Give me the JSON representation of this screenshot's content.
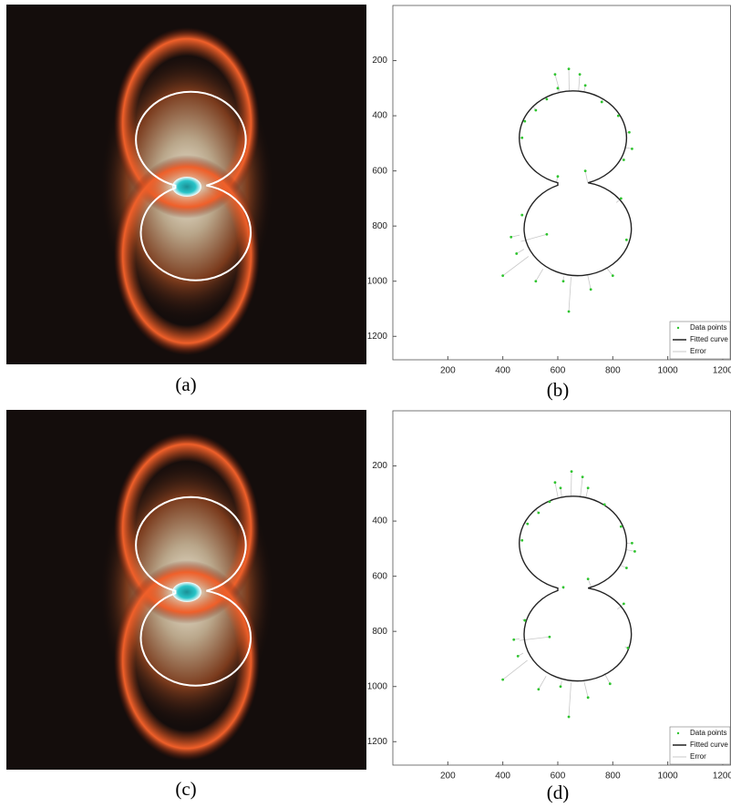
{
  "panels": [
    {
      "caption": "(a)"
    },
    {
      "caption": "(b)",
      "plot": {
        "xlim": [
          0,
          1230
        ],
        "ylim": [
          0,
          1285
        ],
        "xticks": [
          200,
          400,
          600,
          800,
          1000,
          1200
        ],
        "yticks": [
          200,
          400,
          600,
          800,
          1000,
          1200
        ],
        "points": [
          [
            470,
            480
          ],
          [
            480,
            420
          ],
          [
            520,
            380
          ],
          [
            560,
            340
          ],
          [
            600,
            300
          ],
          [
            640,
            230
          ],
          [
            700,
            290
          ],
          [
            760,
            350
          ],
          [
            820,
            400
          ],
          [
            860,
            460
          ],
          [
            840,
            560
          ],
          [
            700,
            600
          ],
          [
            560,
            830
          ],
          [
            470,
            760
          ],
          [
            450,
            900
          ],
          [
            400,
            980
          ],
          [
            520,
            1000
          ],
          [
            620,
            1000
          ],
          [
            640,
            1110
          ],
          [
            720,
            1030
          ],
          [
            800,
            980
          ],
          [
            850,
            850
          ],
          [
            830,
            700
          ],
          [
            600,
            620
          ],
          [
            590,
            250
          ],
          [
            680,
            250
          ],
          [
            870,
            520
          ],
          [
            430,
            840
          ]
        ],
        "legend": [
          "Data points",
          "Fitted curve",
          "Error"
        ]
      }
    },
    {
      "caption": "(c)"
    },
    {
      "caption": "(d)",
      "plot": {
        "xlim": [
          0,
          1230
        ],
        "ylim": [
          0,
          1285
        ],
        "xticks": [
          200,
          400,
          600,
          800,
          1000,
          1200
        ],
        "yticks": [
          200,
          400,
          600,
          800,
          1000,
          1200
        ],
        "points": [
          [
            470,
            470
          ],
          [
            490,
            410
          ],
          [
            530,
            370
          ],
          [
            570,
            330
          ],
          [
            610,
            280
          ],
          [
            650,
            220
          ],
          [
            710,
            280
          ],
          [
            770,
            340
          ],
          [
            830,
            420
          ],
          [
            870,
            480
          ],
          [
            850,
            570
          ],
          [
            710,
            610
          ],
          [
            570,
            820
          ],
          [
            480,
            760
          ],
          [
            455,
            890
          ],
          [
            400,
            975
          ],
          [
            530,
            1010
          ],
          [
            610,
            1000
          ],
          [
            640,
            1110
          ],
          [
            710,
            1040
          ],
          [
            790,
            990
          ],
          [
            855,
            860
          ],
          [
            840,
            700
          ],
          [
            620,
            640
          ],
          [
            590,
            260
          ],
          [
            690,
            240
          ],
          [
            880,
            510
          ],
          [
            440,
            830
          ]
        ],
        "legend": [
          "Data points",
          "Fitted curve",
          "Error"
        ]
      }
    }
  ]
}
